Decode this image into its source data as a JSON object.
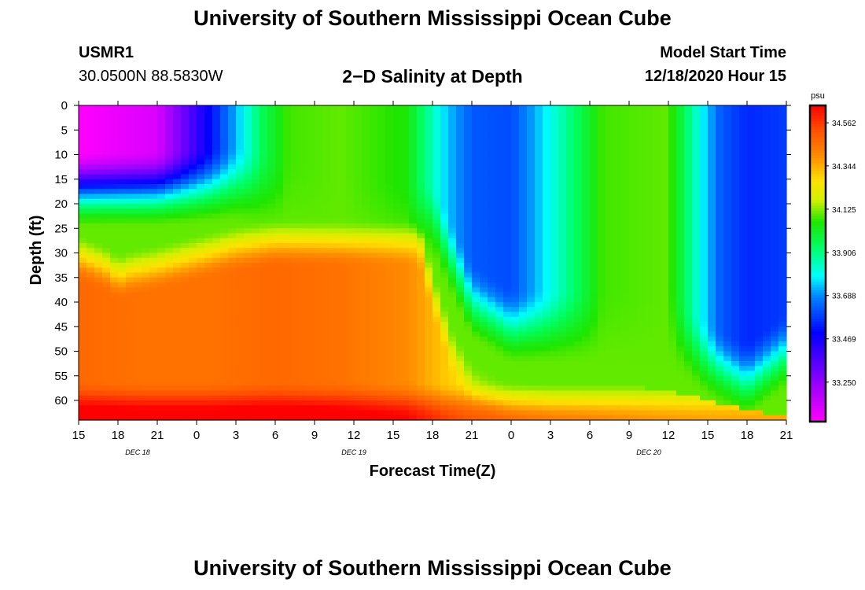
{
  "header": {
    "title": "University of Southern Mississippi Ocean Cube",
    "station_id": "USMR1",
    "coordinates": "30.0500N 88.5830W",
    "subtitle": "2−D Salinity at Depth",
    "model_start_label": "Model Start Time",
    "model_start_value": "12/18/2020 Hour 15"
  },
  "footer": {
    "title": "University of Southern Mississippi Ocean Cube"
  },
  "chart_data": {
    "type": "heatmap",
    "title": "2−D Salinity at Depth",
    "xlabel": "Forecast Time(Z)",
    "ylabel": "Depth (ft)",
    "x_range_hours": [
      0,
      54
    ],
    "x_tick_labels": [
      "15",
      "18",
      "21",
      "0",
      "3",
      "6",
      "9",
      "12",
      "15",
      "18",
      "21",
      "0",
      "3",
      "6",
      "9",
      "12",
      "15",
      "18",
      "21"
    ],
    "x_tick_hours": [
      0,
      3,
      6,
      9,
      12,
      15,
      18,
      21,
      24,
      27,
      30,
      33,
      36,
      39,
      42,
      45,
      48,
      51,
      54
    ],
    "date_labels": [
      {
        "label": "DEC 18",
        "hour": 4.5
      },
      {
        "label": "DEC 19",
        "hour": 21
      },
      {
        "label": "DEC 20",
        "hour": 43.5
      }
    ],
    "ylim": [
      0,
      64
    ],
    "y_ticks": [
      0,
      5,
      10,
      15,
      20,
      25,
      30,
      35,
      40,
      45,
      50,
      55,
      60
    ],
    "colorbar": {
      "unit": "psu",
      "range": [
        33.05,
        34.65
      ],
      "tick_labels": [
        "34.562",
        "34.344",
        "34.125",
        "33.906",
        "33.688",
        "33.469",
        "33.250"
      ]
    },
    "halocline_depth_ft": {
      "hours": [
        0,
        2,
        3,
        4,
        6,
        9,
        12,
        15,
        18,
        21,
        24,
        26,
        27,
        28.5,
        30,
        33,
        36,
        39,
        42,
        45,
        48,
        51,
        54
      ],
      "values": [
        26,
        28,
        30,
        29,
        28,
        26,
        24,
        23,
        23,
        23,
        23,
        23,
        33,
        45,
        52,
        56,
        57,
        57,
        57,
        58,
        60,
        62,
        63
      ]
    },
    "surface_salinity_psu": {
      "hours": [
        0,
        6,
        10,
        14,
        16,
        20,
        25,
        28,
        30,
        33,
        36,
        40,
        45,
        47,
        49,
        51,
        54
      ],
      "values": [
        33.05,
        33.12,
        33.5,
        33.95,
        34.08,
        34.1,
        34.05,
        33.75,
        33.62,
        33.6,
        33.8,
        34.08,
        34.1,
        33.85,
        33.62,
        33.55,
        33.58
      ]
    },
    "surface_layer_depth_ft": {
      "hours": [
        0,
        6,
        12,
        15,
        18,
        21,
        24,
        27,
        30,
        33,
        36,
        39,
        42,
        45,
        48,
        51,
        54
      ],
      "values": [
        17,
        17,
        16,
        18,
        20,
        22,
        23,
        23,
        40,
        45,
        45,
        45,
        45,
        45,
        52,
        56,
        50
      ]
    },
    "deep_salinity_psu": {
      "hours": [
        0,
        5,
        10,
        15,
        20,
        25,
        28,
        30,
        36,
        42,
        48,
        54
      ],
      "values": [
        34.47,
        34.45,
        34.45,
        34.47,
        34.45,
        34.4,
        34.3,
        34.25,
        34.2,
        34.15,
        34.12,
        34.12
      ]
    }
  }
}
